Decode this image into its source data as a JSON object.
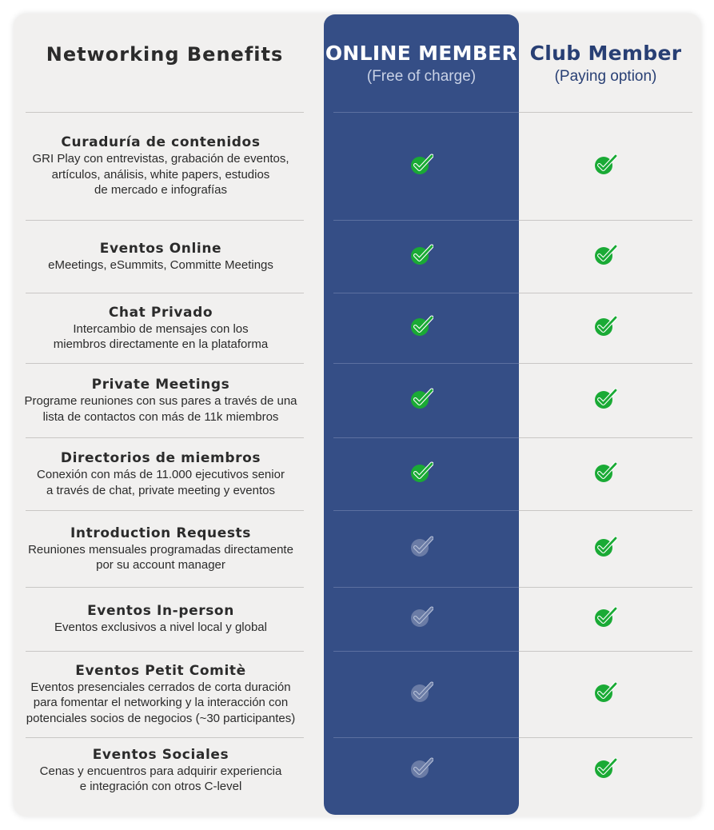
{
  "header": {
    "benefits_title": "Networking Benefits",
    "online_title": "ONLINE MEMBER",
    "online_subtitle": "(Free of charge)",
    "club_title": "Club Member",
    "club_subtitle": "(Paying option)"
  },
  "colors": {
    "card_bg": "#f1f0ef",
    "online_col_bg": "#354e86",
    "check_active": "#1aaa35",
    "check_inactive": "#6b7ca6",
    "club_text": "#283f74"
  },
  "icons": {
    "check": "checkmark-badge-icon"
  },
  "rows": [
    {
      "title": "Curaduría de contenidos",
      "desc": "GRI Play con entrevistas, grabación de eventos,\nartículos, análisis, white papers, estudios\nde mercado e infografías",
      "online": true,
      "club": true
    },
    {
      "title": "Eventos Online",
      "desc": "eMeetings, eSummits, Committe Meetings",
      "online": true,
      "club": true
    },
    {
      "title": "Chat Privado",
      "desc": "Intercambio de mensajes con los\nmiembros directamente en la plataforma",
      "online": true,
      "club": true
    },
    {
      "title": "Private Meetings",
      "desc": "Programe reuniones con sus pares a través de una\nlista de contactos con más de 11k miembros",
      "online": true,
      "club": true
    },
    {
      "title": "Directorios de miembros",
      "desc": "Conexión con más de 11.000 ejecutivos senior\na través de chat, private meeting y eventos",
      "online": true,
      "club": true
    },
    {
      "title": "Introduction Requests",
      "desc": "Reuniones mensuales programadas directamente\npor su account manager",
      "online": false,
      "club": true
    },
    {
      "title": "Eventos In-person",
      "desc": "Eventos exclusivos a nivel local y global",
      "online": false,
      "club": true
    },
    {
      "title": "Eventos Petit Comitè",
      "desc": "Eventos presenciales cerrados de corta duración\npara fomentar el networking y la interacción con\npotenciales socios de negocios (~30 participantes)",
      "online": false,
      "club": true
    },
    {
      "title": "Eventos Sociales",
      "desc": "Cenas y encuentros para adquirir experiencia\ne integración con otros C-level",
      "online": false,
      "club": true
    }
  ]
}
